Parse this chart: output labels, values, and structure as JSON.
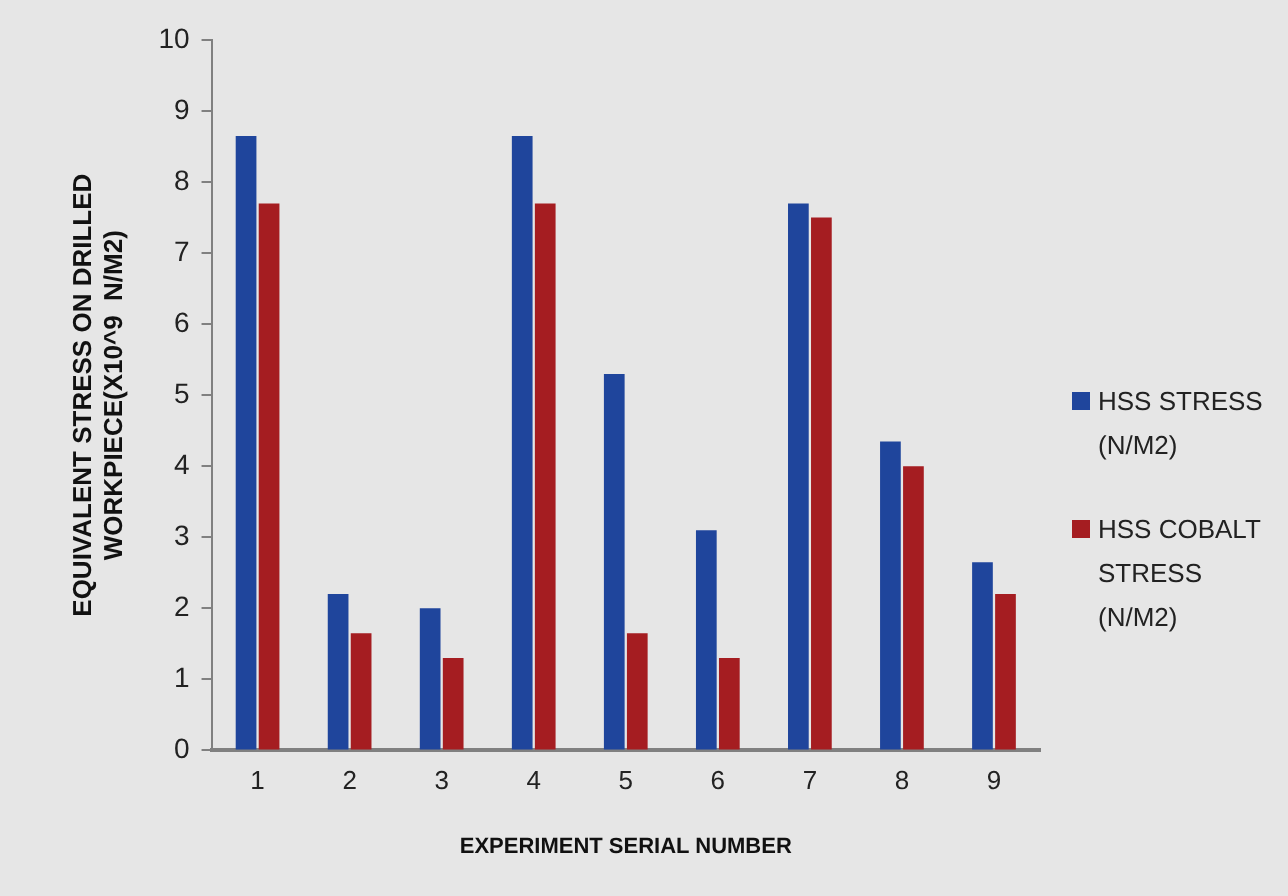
{
  "chart_data": {
    "type": "bar",
    "xlabel": "EXPERIMENT SERIAL NUMBER",
    "ylabel": "EQUIVALENT STRESS ON DRILLED\nWORKPIECE(X10^9  N/M2)",
    "categories": [
      "1",
      "2",
      "3",
      "4",
      "5",
      "6",
      "7",
      "8",
      "9"
    ],
    "series": [
      {
        "name": "HSS STRESS (N/M2)",
        "color": "#1f459c",
        "values": [
          8.65,
          2.2,
          2.0,
          8.65,
          5.3,
          3.1,
          7.7,
          4.35,
          2.65
        ]
      },
      {
        "name": "HSS COBALT STRESS (N/M2)",
        "color": "#a51d21",
        "values": [
          7.7,
          1.65,
          1.3,
          7.7,
          1.65,
          1.3,
          7.5,
          4.0,
          2.2
        ]
      }
    ],
    "ylim": [
      0,
      10
    ],
    "yticks": [
      0,
      1,
      2,
      3,
      4,
      5,
      6,
      7,
      8,
      9,
      10
    ],
    "grid": false,
    "legend": "right"
  }
}
